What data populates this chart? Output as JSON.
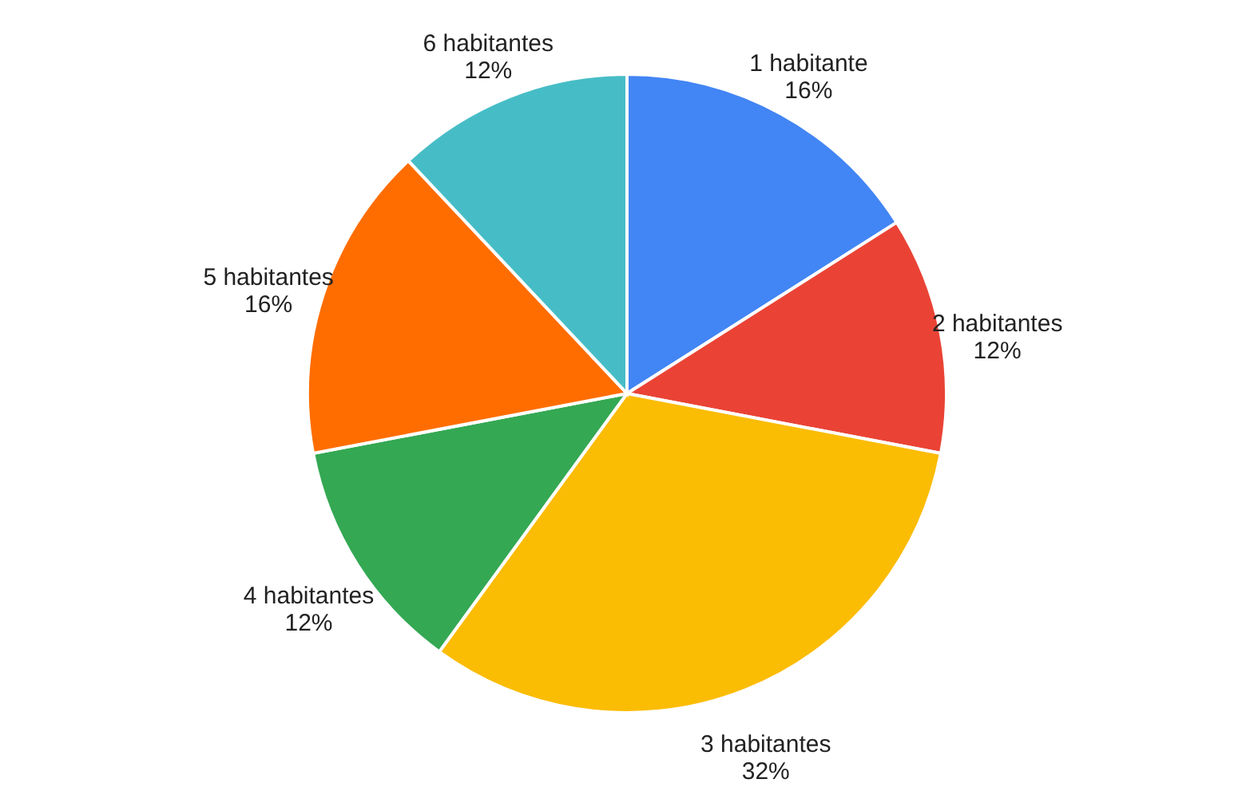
{
  "chart_data": {
    "type": "pie",
    "categories": [
      "1 habitante",
      "2 habitantes",
      "3 habitantes",
      "4 habitantes",
      "5 habitantes",
      "6 habitantes"
    ],
    "values": [
      16,
      12,
      32,
      12,
      16,
      12
    ],
    "colors": [
      "#4285f4",
      "#ea4335",
      "#fbbc04",
      "#34a853",
      "#ff6d01",
      "#46bdc6"
    ],
    "value_labels": [
      "16%",
      "12%",
      "32%",
      "12%",
      "16%",
      "12%"
    ],
    "legend": false
  }
}
